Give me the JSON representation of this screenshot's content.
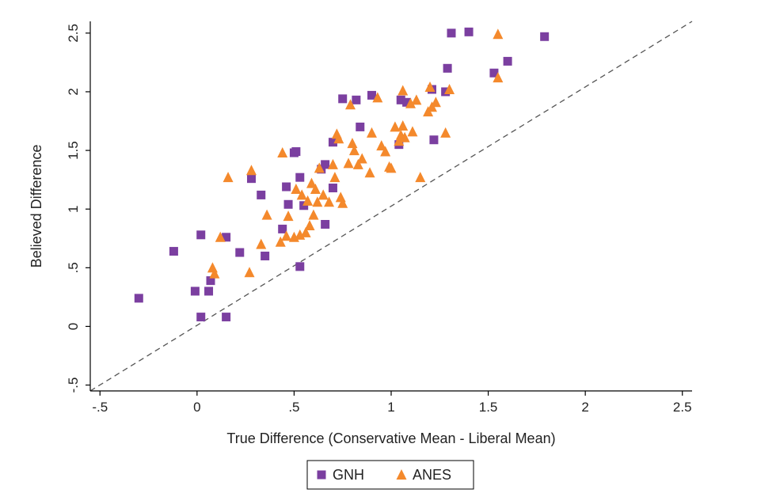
{
  "chart_data": {
    "type": "scatter",
    "title": "",
    "xlabel": "True Difference (Conservative Mean - Liberal Mean)",
    "ylabel": "Believed Difference",
    "xlim": [
      -0.55,
      2.55
    ],
    "ylim": [
      -0.55,
      2.6
    ],
    "xticks": [
      -0.5,
      0,
      0.5,
      1,
      1.5,
      2,
      2.5
    ],
    "xtick_labels": [
      "-.5",
      "0",
      ".5",
      "1",
      "1.5",
      "2",
      "2.5"
    ],
    "yticks": [
      -0.5,
      0,
      0.5,
      1,
      1.5,
      2,
      2.5
    ],
    "ytick_labels": [
      "-.5",
      "0",
      ".5",
      "1",
      "1.5",
      "2",
      "2.5"
    ],
    "grid": false,
    "reference_line": {
      "style": "dashed",
      "from": [
        -0.55,
        -0.55
      ],
      "to": [
        2.55,
        2.6
      ],
      "color": "#555555"
    },
    "legend": {
      "position": "bottom",
      "boxed": true
    },
    "series": [
      {
        "name": "GNH",
        "marker": "square",
        "color": "#7b3fa0",
        "points": [
          [
            -0.3,
            0.24
          ],
          [
            -0.12,
            0.64
          ],
          [
            -0.01,
            0.3
          ],
          [
            0.02,
            0.08
          ],
          [
            0.02,
            0.78
          ],
          [
            0.06,
            0.3
          ],
          [
            0.07,
            0.39
          ],
          [
            0.15,
            0.76
          ],
          [
            0.15,
            0.08
          ],
          [
            0.22,
            0.63
          ],
          [
            0.28,
            1.26
          ],
          [
            0.33,
            1.12
          ],
          [
            0.35,
            0.6
          ],
          [
            0.44,
            0.83
          ],
          [
            0.46,
            1.19
          ],
          [
            0.47,
            1.04
          ],
          [
            0.5,
            1.48
          ],
          [
            0.51,
            1.49
          ],
          [
            0.53,
            0.51
          ],
          [
            0.53,
            1.27
          ],
          [
            0.55,
            1.03
          ],
          [
            0.64,
            1.34
          ],
          [
            0.66,
            1.38
          ],
          [
            0.66,
            0.87
          ],
          [
            0.7,
            1.18
          ],
          [
            0.7,
            1.57
          ],
          [
            0.75,
            1.94
          ],
          [
            0.82,
            1.93
          ],
          [
            0.84,
            1.7
          ],
          [
            0.9,
            1.97
          ],
          [
            1.04,
            1.55
          ],
          [
            1.05,
            1.93
          ],
          [
            1.08,
            1.91
          ],
          [
            1.21,
            2.02
          ],
          [
            1.22,
            1.59
          ],
          [
            1.28,
            2.0
          ],
          [
            1.29,
            2.2
          ],
          [
            1.31,
            2.5
          ],
          [
            1.4,
            2.51
          ],
          [
            1.53,
            2.16
          ],
          [
            1.6,
            2.26
          ],
          [
            1.79,
            2.47
          ]
        ]
      },
      {
        "name": "ANES",
        "marker": "triangle",
        "color": "#f4892c",
        "points": [
          [
            0.08,
            0.5
          ],
          [
            0.09,
            0.45
          ],
          [
            0.12,
            0.76
          ],
          [
            0.16,
            1.27
          ],
          [
            0.27,
            0.46
          ],
          [
            0.28,
            1.33
          ],
          [
            0.33,
            0.7
          ],
          [
            0.36,
            0.95
          ],
          [
            0.43,
            0.72
          ],
          [
            0.44,
            1.48
          ],
          [
            0.46,
            0.77
          ],
          [
            0.47,
            0.94
          ],
          [
            0.5,
            0.76
          ],
          [
            0.51,
            1.17
          ],
          [
            0.53,
            0.78
          ],
          [
            0.54,
            1.12
          ],
          [
            0.56,
            0.8
          ],
          [
            0.57,
            1.07
          ],
          [
            0.58,
            0.86
          ],
          [
            0.59,
            1.22
          ],
          [
            0.6,
            0.95
          ],
          [
            0.61,
            1.17
          ],
          [
            0.62,
            1.06
          ],
          [
            0.63,
            1.35
          ],
          [
            0.65,
            1.12
          ],
          [
            0.68,
            1.06
          ],
          [
            0.7,
            1.38
          ],
          [
            0.71,
            1.27
          ],
          [
            0.72,
            1.64
          ],
          [
            0.73,
            1.6
          ],
          [
            0.74,
            1.1
          ],
          [
            0.75,
            1.05
          ],
          [
            0.78,
            1.39
          ],
          [
            0.79,
            1.89
          ],
          [
            0.8,
            1.56
          ],
          [
            0.81,
            1.5
          ],
          [
            0.83,
            1.38
          ],
          [
            0.85,
            1.43
          ],
          [
            0.89,
            1.31
          ],
          [
            0.9,
            1.65
          ],
          [
            0.93,
            1.95
          ],
          [
            0.95,
            1.54
          ],
          [
            0.97,
            1.49
          ],
          [
            0.99,
            1.36
          ],
          [
            1.0,
            1.35
          ],
          [
            1.02,
            1.7
          ],
          [
            1.04,
            1.58
          ],
          [
            1.05,
            1.63
          ],
          [
            1.06,
            1.71
          ],
          [
            1.07,
            1.61
          ],
          [
            1.06,
            2.01
          ],
          [
            1.1,
            1.9
          ],
          [
            1.11,
            1.66
          ],
          [
            1.13,
            1.93
          ],
          [
            1.15,
            1.27
          ],
          [
            1.19,
            1.83
          ],
          [
            1.2,
            2.04
          ],
          [
            1.21,
            1.87
          ],
          [
            1.23,
            1.91
          ],
          [
            1.28,
            1.65
          ],
          [
            1.3,
            2.02
          ],
          [
            1.55,
            2.49
          ],
          [
            1.55,
            2.12
          ]
        ]
      }
    ]
  }
}
